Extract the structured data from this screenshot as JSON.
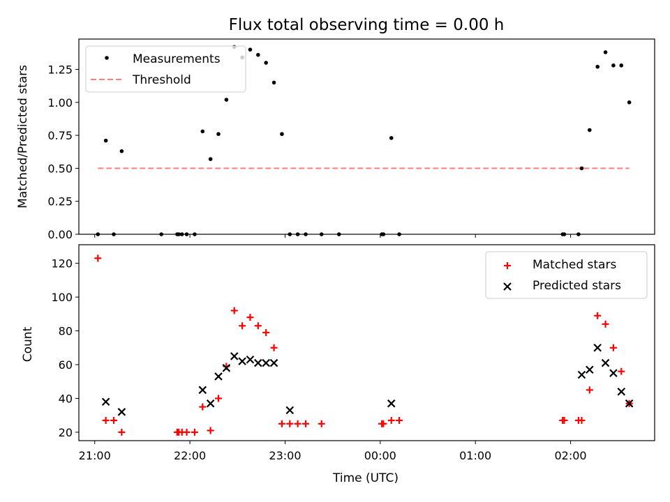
{
  "figure": {
    "title": "Flux total observing time = 0.00 h"
  },
  "chart_data": [
    {
      "type": "scatter",
      "ylabel": "Matched/Predicted stars",
      "xlim": [
        "20:50",
        "02:53"
      ],
      "ylim": [
        0,
        1.48
      ],
      "yticks": [
        "0.00",
        "0.25",
        "0.50",
        "0.75",
        "1.00",
        "1.25"
      ],
      "legend_position": "top-left",
      "series": [
        {
          "name": "Measurements",
          "color": "#000000",
          "marker": "dot",
          "x": [
            "21:02",
            "21:07",
            "21:12",
            "21:17",
            "21:42",
            "21:52",
            "21:53",
            "21:55",
            "21:58",
            "22:03",
            "22:08",
            "22:13",
            "22:18",
            "22:23",
            "22:28",
            "22:33",
            "22:38",
            "22:43",
            "22:48",
            "22:53",
            "22:58",
            "23:03",
            "23:08",
            "23:13",
            "23:23",
            "23:34",
            "00:01",
            "00:02",
            "00:07",
            "00:12",
            "01:55",
            "01:56",
            "02:05",
            "02:07",
            "02:12",
            "02:17",
            "02:22",
            "02:27",
            "02:32",
            "02:37"
          ],
          "y": [
            0,
            0.71,
            0,
            0.63,
            0,
            0,
            0,
            0,
            0,
            0,
            0.78,
            0.57,
            0.76,
            1.02,
            1.42,
            1.34,
            1.4,
            1.36,
            1.3,
            1.15,
            0.76,
            0,
            0,
            0,
            0,
            0,
            0,
            0,
            0.73,
            0,
            0,
            0,
            0,
            0.5,
            0.79,
            1.27,
            1.38,
            1.28,
            1.28,
            1.0
          ]
        },
        {
          "name": "Threshold",
          "color": "#ff7f7f",
          "style": "dashed",
          "x": [
            "21:02",
            "02:37"
          ],
          "y": [
            0.5,
            0.5
          ]
        }
      ]
    },
    {
      "type": "scatter",
      "xlabel": "Time (UTC)",
      "ylabel": "Count",
      "xlim": [
        "20:50",
        "02:53"
      ],
      "ylim": [
        15,
        131
      ],
      "yticks": [
        "20",
        "40",
        "60",
        "80",
        "100",
        "120"
      ],
      "xticks": [
        "21:00",
        "22:00",
        "23:00",
        "00:00",
        "01:00",
        "02:00"
      ],
      "legend_position": "top-right",
      "series": [
        {
          "name": "Matched stars",
          "color": "#ff0000",
          "marker": "plus",
          "x": [
            "21:02",
            "21:07",
            "21:12",
            "21:17",
            "21:52",
            "21:53",
            "21:55",
            "21:58",
            "22:03",
            "22:08",
            "22:13",
            "22:18",
            "22:23",
            "22:28",
            "22:33",
            "22:38",
            "22:43",
            "22:48",
            "22:53",
            "22:58",
            "23:03",
            "23:08",
            "23:13",
            "23:23",
            "00:01",
            "00:02",
            "00:07",
            "00:12",
            "01:55",
            "01:56",
            "02:05",
            "02:07",
            "02:12",
            "02:17",
            "02:22",
            "02:27",
            "02:32",
            "02:37"
          ],
          "y": [
            123,
            27,
            27,
            20,
            20,
            20,
            20,
            20,
            20,
            35,
            21,
            40,
            59,
            92,
            83,
            88,
            83,
            79,
            70,
            25,
            25,
            25,
            25,
            25,
            25,
            25,
            27,
            27,
            27,
            27,
            27,
            27,
            45,
            89,
            84,
            70,
            56,
            37
          ]
        },
        {
          "name": "Predicted stars",
          "color": "#000000",
          "marker": "x",
          "x": [
            "21:07",
            "21:17",
            "22:08",
            "22:13",
            "22:18",
            "22:23",
            "22:28",
            "22:33",
            "22:38",
            "22:43",
            "22:48",
            "22:53",
            "23:03",
            "00:07",
            "02:07",
            "02:12",
            "02:17",
            "02:22",
            "02:27",
            "02:32",
            "02:37"
          ],
          "y": [
            38,
            32,
            45,
            37,
            53,
            58,
            65,
            62,
            63,
            61,
            61,
            61,
            33,
            37,
            54,
            57,
            70,
            61,
            55,
            44,
            37
          ]
        }
      ]
    }
  ]
}
